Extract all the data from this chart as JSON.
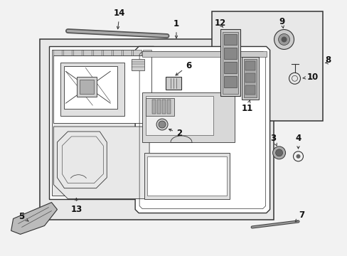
{
  "bg_color": "#f2f2f2",
  "line_color": "#333333",
  "label_color": "#111111",
  "inset_bg": "#e8e8e8",
  "main_bg": "#e8e8e8",
  "fig_width": 4.89,
  "fig_height": 3.6,
  "dpi": 100,
  "fs": 8.5,
  "fs_small": 7.5
}
